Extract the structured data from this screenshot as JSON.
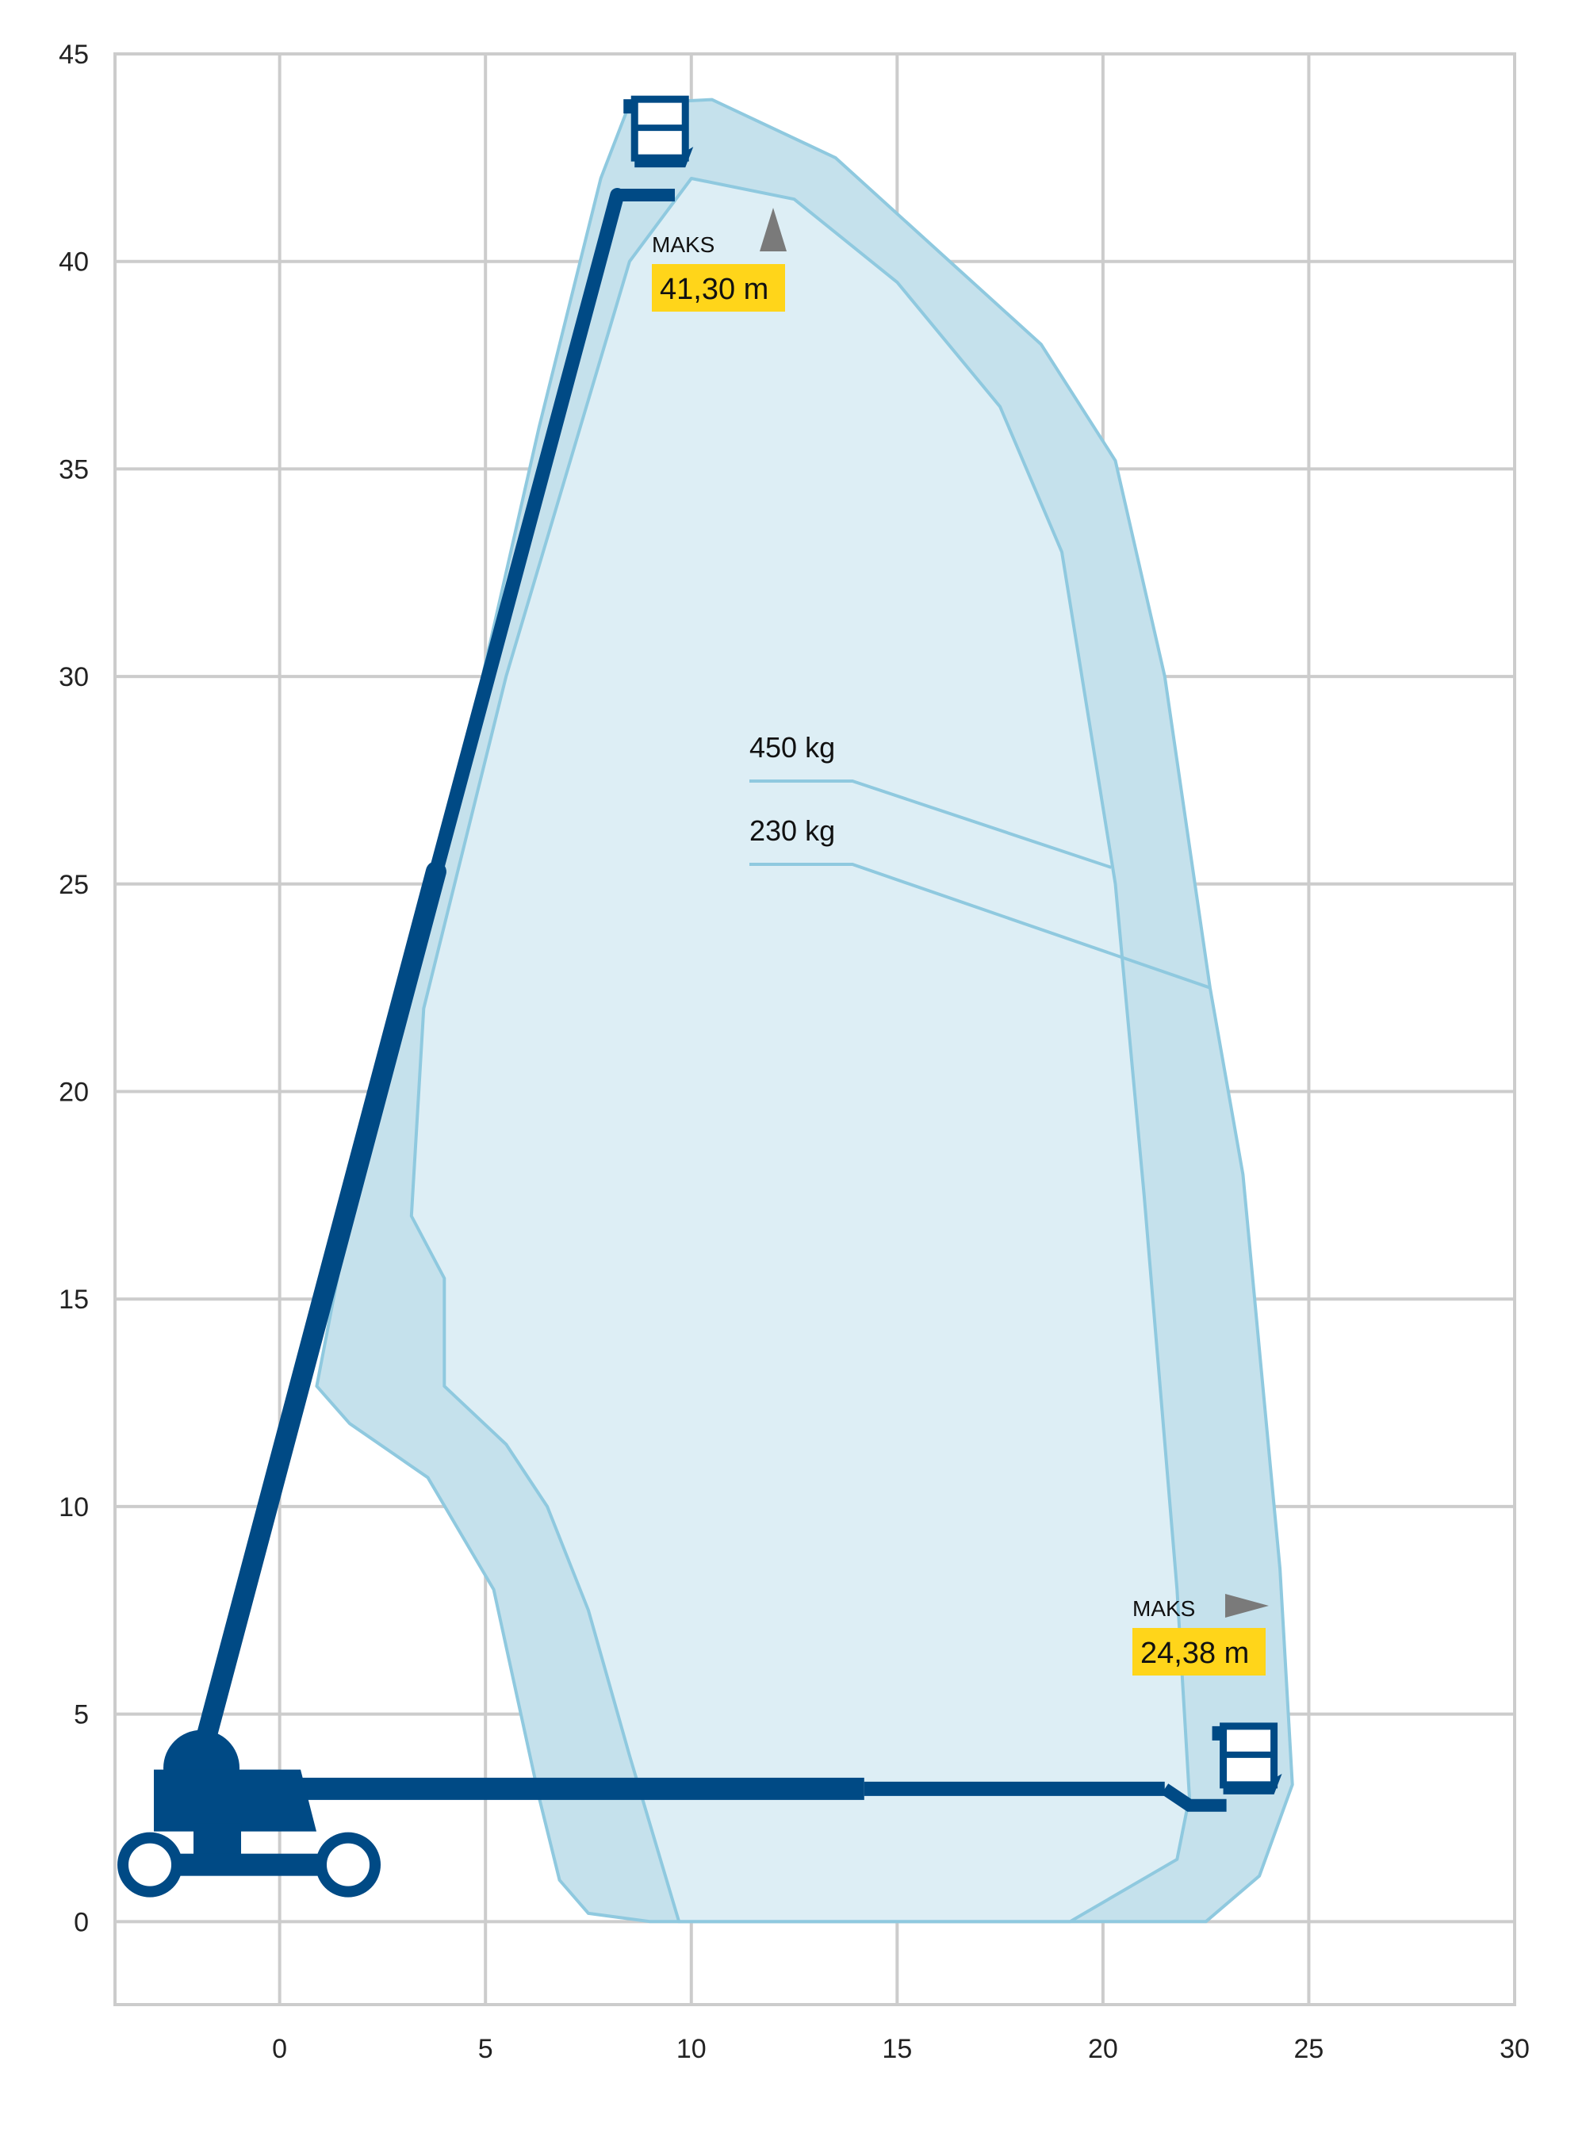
{
  "chart_data": {
    "type": "area",
    "xlim": [
      -4,
      30
    ],
    "ylim": [
      -2,
      45
    ],
    "grid": true,
    "x_ticks": [
      "0",
      "5",
      "10",
      "15",
      "20",
      "25",
      "30"
    ],
    "y_ticks": [
      "0",
      "5",
      "10",
      "15",
      "20",
      "25",
      "30",
      "35",
      "40",
      "45"
    ],
    "series": [
      {
        "name": "230 kg",
        "color": "#c5e1ec",
        "stroke": "#8fc9df",
        "points": [
          [
            0.9,
            12.9
          ],
          [
            1.7,
            12.0
          ],
          [
            3.6,
            10.7
          ],
          [
            5.2,
            8.0
          ],
          [
            6.3,
            3.0
          ],
          [
            6.8,
            1.0
          ],
          [
            7.5,
            0.2
          ],
          [
            9.0,
            0
          ],
          [
            22.5,
            0
          ],
          [
            23.8,
            1.1
          ],
          [
            24.6,
            3.3
          ],
          [
            24.3,
            8.5
          ],
          [
            23.4,
            18.0
          ],
          [
            22.6,
            22.5
          ],
          [
            21.5,
            30.0
          ],
          [
            20.3,
            35.2
          ],
          [
            18.5,
            38.0
          ],
          [
            13.5,
            42.5
          ],
          [
            10.5,
            43.9
          ],
          [
            8.5,
            43.8
          ],
          [
            7.8,
            42.0
          ],
          [
            6.3,
            36.0
          ],
          [
            4.7,
            29.0
          ],
          [
            3.0,
            22.0
          ],
          [
            1.5,
            16.0
          ],
          [
            0.9,
            12.9
          ]
        ]
      },
      {
        "name": "450 kg",
        "color": "#ddeef5",
        "stroke": "#8fc9df",
        "points": [
          [
            4.0,
            12.9
          ],
          [
            5.5,
            11.5
          ],
          [
            6.5,
            10.0
          ],
          [
            7.5,
            7.5
          ],
          [
            8.5,
            4.0
          ],
          [
            9.7,
            0.0
          ],
          [
            19.2,
            0.0
          ],
          [
            21.8,
            1.5
          ],
          [
            22.1,
            3.0
          ],
          [
            21.8,
            8.0
          ],
          [
            21.0,
            17.5
          ],
          [
            20.3,
            25.0
          ],
          [
            19.0,
            33.0
          ],
          [
            17.5,
            36.5
          ],
          [
            15.0,
            39.5
          ],
          [
            12.5,
            41.5
          ],
          [
            10.0,
            42.0
          ],
          [
            8.5,
            40.0
          ],
          [
            5.5,
            30.0
          ],
          [
            3.5,
            22.0
          ],
          [
            3.2,
            17.0
          ],
          [
            4.0,
            15.5
          ],
          [
            4.0,
            12.9
          ]
        ]
      }
    ],
    "series_labels": [
      "450 kg",
      "230 kg"
    ],
    "annotations": [
      {
        "label": "MAKS",
        "value": "41,30 m",
        "direction": "up"
      },
      {
        "label": "MAKS",
        "value": "24,38 m",
        "direction": "right"
      }
    ],
    "machine": {
      "boom_vertical": [
        [
          -1.9,
          4.0
        ],
        [
          3.8,
          25.3
        ],
        [
          8.2,
          41.6
        ]
      ],
      "boom_horizontal": [
        [
          -1.9,
          3.2
        ],
        [
          21.5,
          3.2
        ]
      ],
      "basket_top": [
        9.2,
        42.8
      ],
      "basket_right": [
        23.5,
        3.6
      ]
    },
    "colors": {
      "boom": "#004a85",
      "highlight": "#ffd51a",
      "arrow": "#7a7a7a",
      "grid": "#cccccc"
    }
  }
}
